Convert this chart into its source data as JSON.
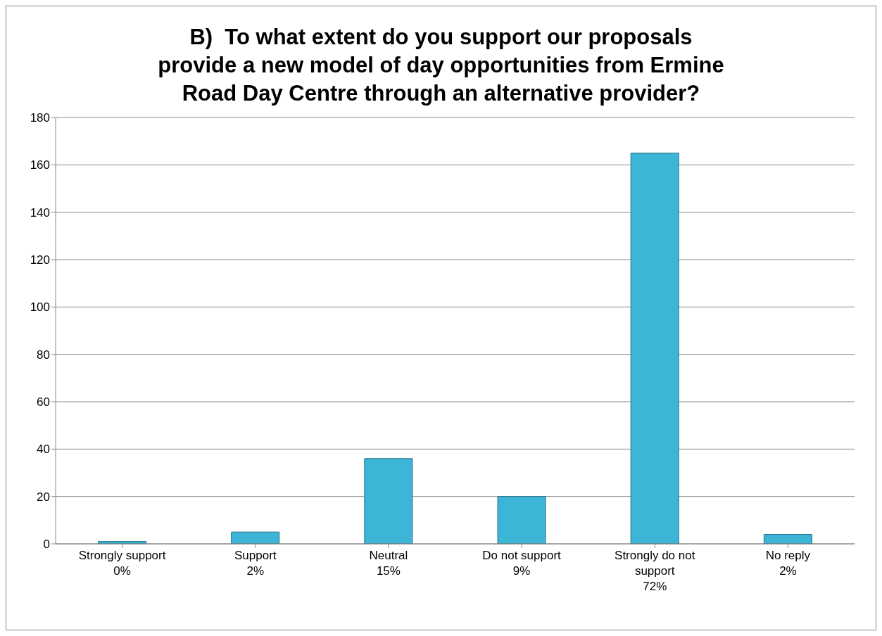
{
  "chart_data": {
    "type": "bar",
    "title": "B)  To what extent do you support our proposals provide a new model of day opportunities from Ermine Road Day Centre through an alternative provider?",
    "categories": [
      "Strongly support\n0%",
      "Support\n2%",
      "Neutral\n15%",
      "Do not support\n9%",
      "Strongly do not support\n72%",
      "No reply\n2%"
    ],
    "values": [
      1,
      5,
      36,
      20,
      165,
      4
    ],
    "color": "#3db5d6",
    "ylim": [
      0,
      180
    ],
    "yticks": [
      0,
      20,
      40,
      60,
      80,
      100,
      120,
      140,
      160,
      180
    ],
    "grid": "y"
  }
}
